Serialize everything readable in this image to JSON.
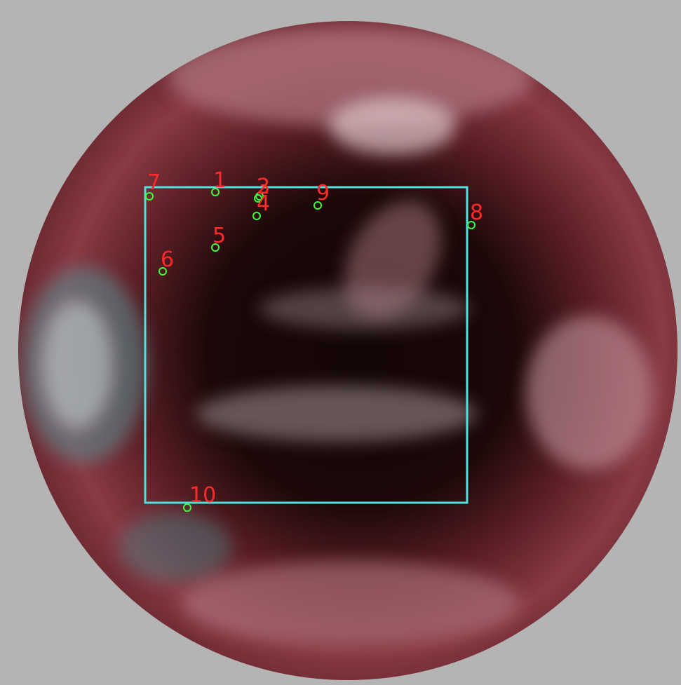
{
  "markers": [
    {
      "label": "7"
    },
    {
      "label": "1"
    },
    {
      "label": "2"
    },
    {
      "label": "3"
    },
    {
      "label": "4"
    },
    {
      "label": "9"
    },
    {
      "label": "8"
    },
    {
      "label": "5"
    },
    {
      "label": "6"
    },
    {
      "label": "10"
    }
  ]
}
